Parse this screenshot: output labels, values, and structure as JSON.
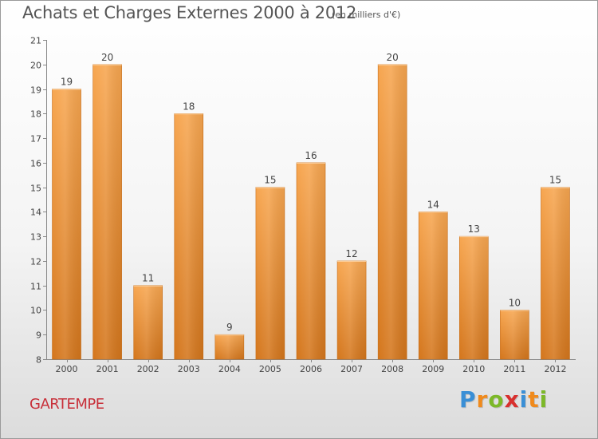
{
  "header": {
    "title": "Achats et Charges Externes 2000 à 2012",
    "unit": "(en milliers d'€)"
  },
  "commune": "GARTEMPE",
  "logo": {
    "letters": [
      "P",
      "r",
      "o",
      "x",
      "i",
      "t",
      "i"
    ],
    "colors": [
      "#3a8fd6",
      "#f08a1c",
      "#7cb828",
      "#d8302e",
      "#3a8fd6",
      "#f08a1c",
      "#7cb828"
    ]
  },
  "colors": {
    "bar_top": "#f7a650",
    "bar_bottom": "#d4761c",
    "text": "#444444"
  },
  "chart_data": {
    "type": "bar",
    "categories": [
      "2000",
      "2001",
      "2002",
      "2003",
      "2004",
      "2005",
      "2006",
      "2007",
      "2008",
      "2009",
      "2010",
      "2011",
      "2012"
    ],
    "values": [
      19,
      20,
      11,
      18,
      9,
      15,
      16,
      12,
      20,
      14,
      13,
      10,
      15
    ],
    "ylim": [
      8,
      21
    ],
    "yticks": [
      8,
      9,
      10,
      11,
      12,
      13,
      14,
      15,
      16,
      17,
      18,
      19,
      20,
      21
    ],
    "grid": false
  }
}
